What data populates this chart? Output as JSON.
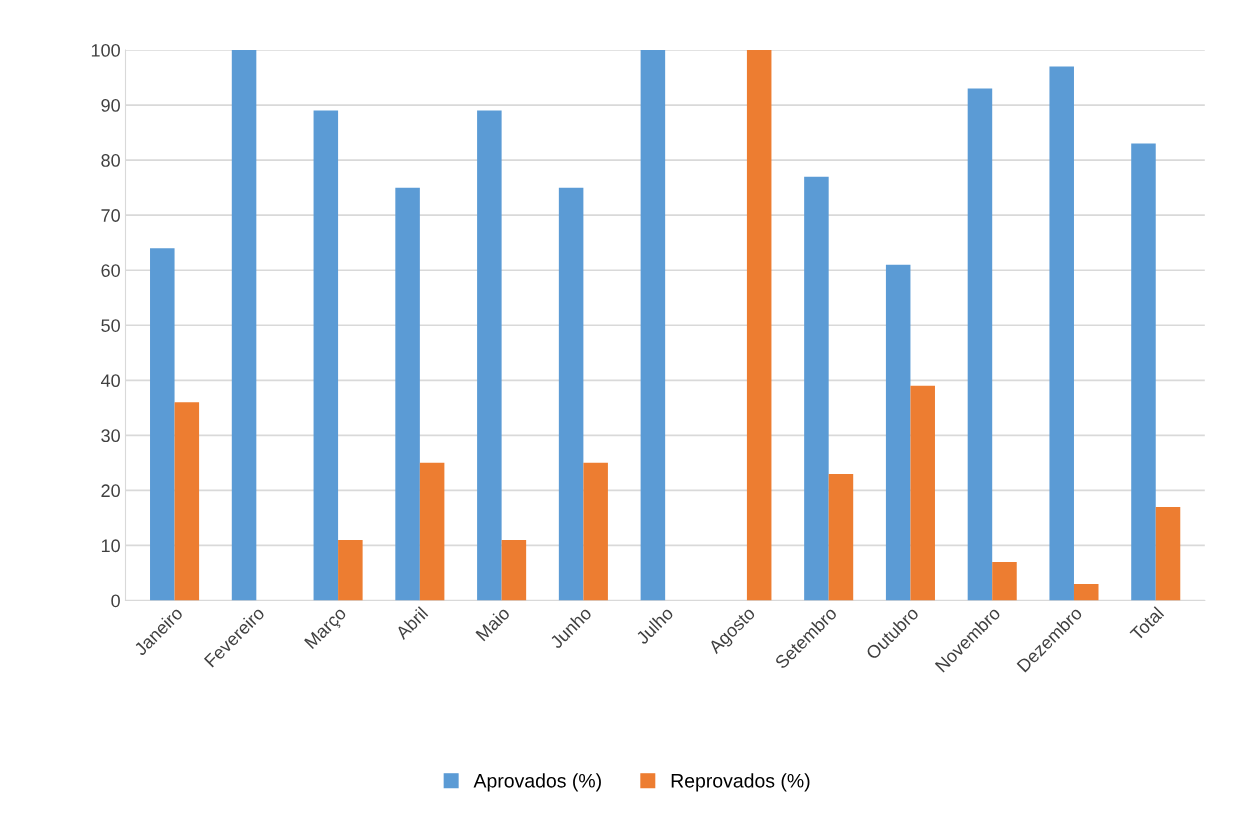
{
  "chart_data": {
    "type": "bar",
    "categories": [
      "Janeiro",
      "Fevereiro",
      "Março",
      "Abril",
      "Maio",
      "Junho",
      "Julho",
      "Agosto",
      "Setembro",
      "Outubro",
      "Novembro",
      "Dezembro",
      "Total"
    ],
    "series": [
      {
        "name": "Aprovados (%)",
        "color": "#5b9bd5",
        "values": [
          64,
          100,
          89,
          75,
          89,
          75,
          100,
          0,
          77,
          61,
          93,
          97,
          83
        ]
      },
      {
        "name": "Reprovados (%)",
        "color": "#ed7d31",
        "values": [
          36,
          0,
          11,
          25,
          11,
          25,
          0,
          100,
          23,
          39,
          7,
          3,
          17
        ]
      }
    ],
    "ylim": [
      0,
      100
    ],
    "yticks": [
      0,
      10,
      20,
      30,
      40,
      50,
      60,
      70,
      80,
      90,
      100
    ],
    "grid": "y",
    "legend": "bottom"
  }
}
